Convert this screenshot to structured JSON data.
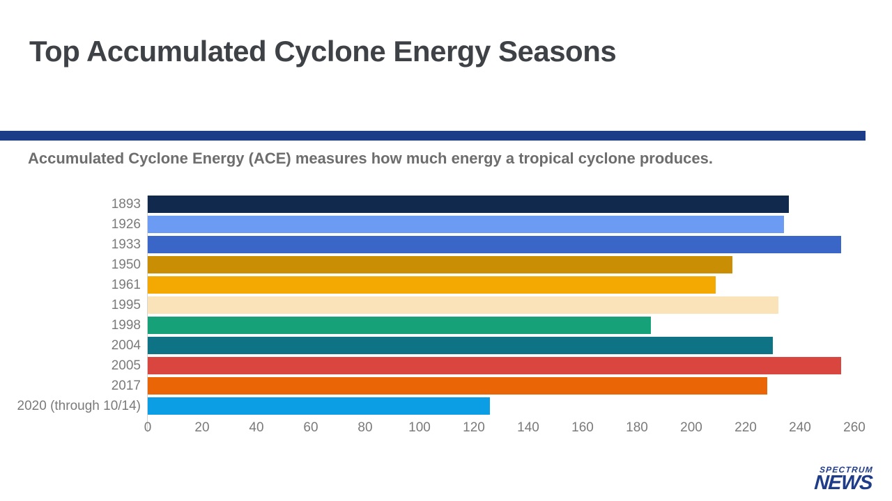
{
  "page": {
    "title": "Top Accumulated Cyclone Energy Seasons",
    "subtitle": "Accumulated Cyclone Energy (ACE) measures how much energy a tropical cyclone produces.",
    "colors": {
      "divider": "#1b3d87",
      "title_text": "#3e4247",
      "subtitle_text": "#6d6d6d",
      "axis_text": "#7a7a7a",
      "logo": "#1e3c87"
    },
    "logo": {
      "top": "SPECTRUM",
      "bottom": "NEWS"
    }
  },
  "chart_data": {
    "type": "bar",
    "orientation": "horizontal",
    "title": "Top Accumulated Cyclone Energy Seasons",
    "subtitle": "Accumulated Cyclone Energy (ACE) measures how much energy a tropical cyclone produces.",
    "xlabel": "",
    "ylabel": "",
    "categories": [
      "1893",
      "1926",
      "1933",
      "1950",
      "1961",
      "1995",
      "1998",
      "2004",
      "2005",
      "2017",
      "2020 (through 10/14)"
    ],
    "values": [
      236,
      234,
      255,
      215,
      209,
      232,
      185,
      230,
      255,
      228,
      126
    ],
    "bar_colors": [
      "#12294e",
      "#6b9bf2",
      "#3a67c7",
      "#c98e04",
      "#f4a902",
      "#fae3b8",
      "#16a179",
      "#0e7385",
      "#d9453f",
      "#ea6505",
      "#0c9ee4"
    ],
    "xlim": [
      0,
      260
    ],
    "x_ticks": [
      0,
      20,
      40,
      60,
      80,
      100,
      120,
      140,
      160,
      180,
      200,
      220,
      240,
      260
    ],
    "grid": false,
    "legend": false
  }
}
